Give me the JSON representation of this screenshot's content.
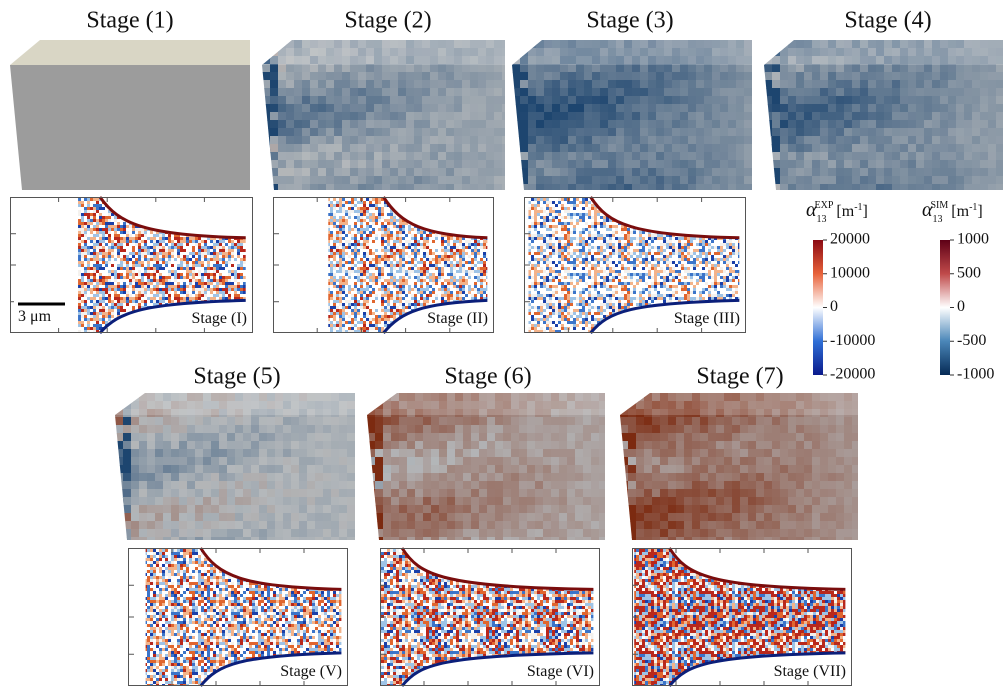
{
  "stages_3d": [
    "Stage (1)",
    "Stage (2)",
    "Stage (3)",
    "Stage (4)",
    "Stage (5)",
    "Stage (6)",
    "Stage (7)"
  ],
  "stages_maps": [
    "Stage (I)",
    "Stage (II)",
    "Stage (III)",
    "Stage (V)",
    "Stage (VI)",
    "Stage (VII)"
  ],
  "scale_bar": "3 μm",
  "colorbars": [
    {
      "symbol": "α",
      "subscript": "13",
      "superscript": "EXP",
      "unit": "[m",
      "unit_superscript": "-1",
      "unit_close": "]",
      "lim": [
        -20000,
        20000
      ],
      "ticks": [
        20000,
        10000,
        0,
        -10000,
        -20000
      ]
    },
    {
      "symbol": "α",
      "subscript": "13",
      "superscript": "SIM",
      "unit": "[m",
      "unit_superscript": "-1",
      "unit_close": "]",
      "lim": [
        -1000,
        1000
      ],
      "ticks": [
        1000,
        500,
        0,
        -500,
        -1000
      ]
    }
  ]
}
